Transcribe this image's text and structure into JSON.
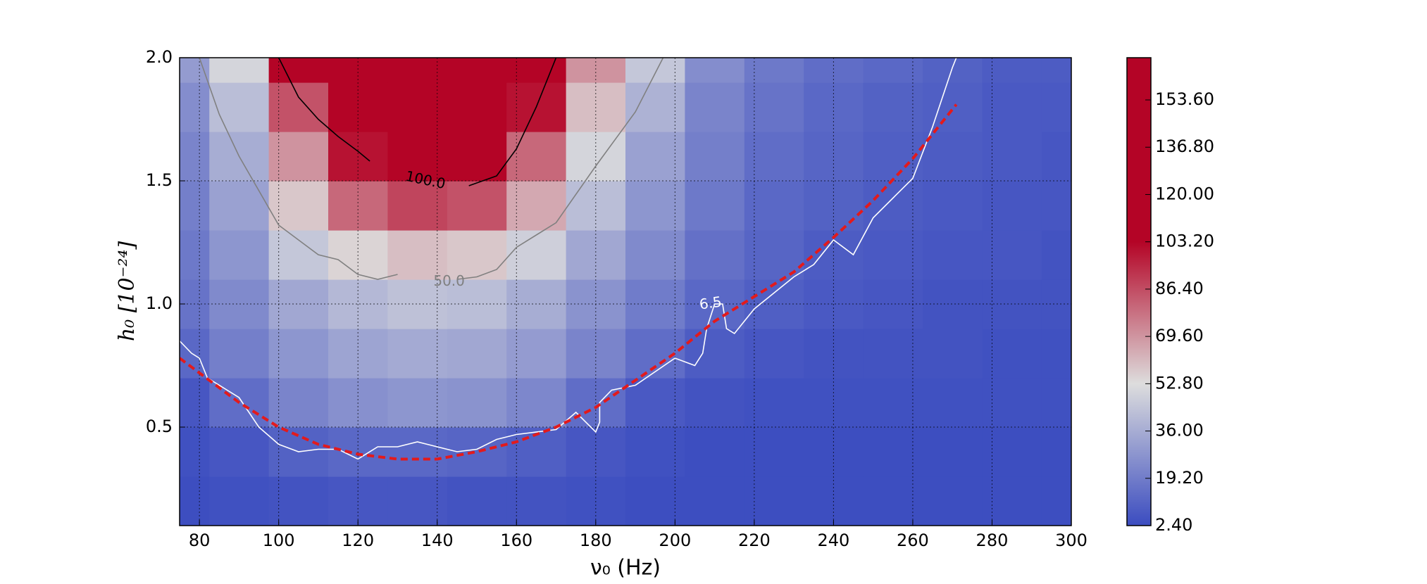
{
  "chart_data": {
    "type": "heatmap",
    "x_label": "ν₀ (Hz)",
    "y_label": "h₀ [10⁻²⁴]",
    "xlim": [
      75,
      300
    ],
    "ylim": [
      0.1,
      2.0
    ],
    "xticks": [
      80,
      100,
      120,
      140,
      160,
      180,
      200,
      220,
      240,
      260,
      280,
      300
    ],
    "yticks": [
      0.5,
      {
        "value": 1,
        "label": "1.0"
      },
      1.5,
      {
        "value": 2,
        "label": "2.0"
      }
    ],
    "grid": true,
    "x": [
      75,
      90,
      105,
      120,
      135,
      150,
      165,
      180,
      195,
      210,
      225,
      240,
      255,
      270,
      285,
      300
    ],
    "y": [
      0.2,
      0.4,
      0.6,
      0.8,
      1.0,
      1.2,
      1.4,
      1.6,
      1.8,
      2.0
    ],
    "z": [
      [
        3,
        4,
        5,
        6,
        6,
        5,
        5,
        4,
        3,
        3,
        3,
        3,
        3,
        3,
        3,
        3
      ],
      [
        4,
        6,
        10,
        12,
        12,
        11,
        9,
        6,
        4,
        3,
        3,
        3,
        3,
        3,
        3,
        3
      ],
      [
        6,
        14,
        22,
        26,
        28,
        27,
        23,
        14,
        7,
        5,
        4,
        4,
        4,
        4,
        4,
        4
      ],
      [
        12,
        20,
        28,
        33,
        35,
        34,
        30,
        22,
        14,
        8,
        6,
        5,
        5,
        5,
        4,
        4
      ],
      [
        16,
        24,
        34,
        40,
        43,
        42,
        36,
        27,
        19,
        12,
        9,
        7,
        6,
        5,
        5,
        5
      ],
      [
        18,
        28,
        45,
        55,
        60,
        58,
        48,
        34,
        24,
        15,
        11,
        8,
        7,
        6,
        6,
        5
      ],
      [
        20,
        32,
        58,
        80,
        88,
        85,
        65,
        42,
        28,
        18,
        12,
        10,
        8,
        7,
        6,
        6
      ],
      [
        22,
        36,
        70,
        100,
        110,
        105,
        80,
        50,
        32,
        20,
        14,
        11,
        9,
        8,
        7,
        6
      ],
      [
        25,
        42,
        85,
        130,
        160,
        150,
        100,
        60,
        38,
        22,
        16,
        12,
        10,
        9,
        7,
        7
      ],
      [
        30,
        50,
        110,
        170,
        170,
        170,
        120,
        70,
        45,
        25,
        18,
        14,
        12,
        10,
        8,
        8
      ]
    ],
    "colorscale": [
      {
        "value": 2.4,
        "color": "#3b4cc0"
      },
      {
        "value": 52.8,
        "color": "#dddddd"
      },
      {
        "value": 103.2,
        "color": "#b40426"
      }
    ],
    "clim": [
      2.4,
      168.6
    ],
    "cticks": [
      {
        "value": 2.4,
        "label": "2.40"
      },
      {
        "value": 19.2,
        "label": "19.20"
      },
      {
        "value": 36,
        "label": "36.00"
      },
      {
        "value": 52.8,
        "label": "52.80"
      },
      {
        "value": 69.6,
        "label": "69.60"
      },
      {
        "value": 86.4,
        "label": "86.40"
      },
      {
        "value": 103.2,
        "label": "103.20"
      },
      {
        "value": 120,
        "label": "120.00"
      },
      {
        "value": 136.8,
        "label": "136.80"
      },
      {
        "value": 153.6,
        "label": "153.60"
      }
    ],
    "contours": [
      {
        "label": "100.0",
        "color": "#000000",
        "x": [
          100,
          105,
          110,
          115,
          120,
          123,
          null,
          148,
          155,
          160,
          165,
          170
        ],
        "y": [
          2.0,
          1.84,
          1.75,
          1.68,
          1.62,
          1.58,
          null,
          1.48,
          1.52,
          1.63,
          1.8,
          2.0
        ]
      },
      {
        "label": "50.0",
        "color": "#808080",
        "x": [
          80,
          85,
          90,
          100,
          110,
          115,
          120,
          125,
          130,
          null,
          145,
          150,
          155,
          160,
          170,
          180,
          190,
          197
        ],
        "y": [
          2.0,
          1.77,
          1.6,
          1.32,
          1.2,
          1.18,
          1.12,
          1.1,
          1.12,
          null,
          1.1,
          1.11,
          1.14,
          1.23,
          1.33,
          1.56,
          1.78,
          2.0
        ]
      },
      {
        "label": "6.5",
        "color": "#ffffff",
        "x": [
          75,
          78,
          80,
          82,
          90,
          95,
          100,
          105,
          110,
          115,
          120,
          125,
          130,
          135,
          140,
          145,
          150,
          155,
          160,
          170,
          175,
          180,
          181,
          181,
          184,
          190,
          200,
          205,
          207,
          208,
          210,
          212,
          213,
          215,
          220,
          230,
          235,
          240,
          245,
          250,
          260,
          265,
          270,
          271
        ],
        "y": [
          0.85,
          0.8,
          0.78,
          0.7,
          0.62,
          0.5,
          0.43,
          0.4,
          0.41,
          0.41,
          0.37,
          0.42,
          0.42,
          0.44,
          0.42,
          0.4,
          0.41,
          0.45,
          0.47,
          0.49,
          0.56,
          0.48,
          0.52,
          0.6,
          0.65,
          0.67,
          0.78,
          0.75,
          0.8,
          0.9,
          1.0,
          1.0,
          0.9,
          0.88,
          0.98,
          1.11,
          1.16,
          1.26,
          1.2,
          1.35,
          1.51,
          1.72,
          1.96,
          2.0
        ]
      }
    ],
    "fit": {
      "color": "#e31a1c",
      "x": [
        75,
        90,
        100,
        110,
        120,
        130,
        140,
        150,
        160,
        170,
        180,
        190,
        200,
        210,
        220,
        230,
        240,
        250,
        260,
        271
      ],
      "y": [
        0.78,
        0.6,
        0.5,
        0.43,
        0.39,
        0.37,
        0.37,
        0.4,
        0.44,
        0.5,
        0.58,
        0.69,
        0.8,
        0.93,
        1.03,
        1.13,
        1.27,
        1.42,
        1.59,
        1.81
      ]
    }
  }
}
